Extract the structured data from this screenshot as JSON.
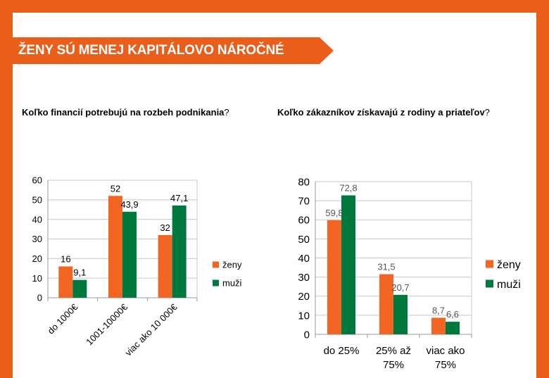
{
  "header": {
    "title": "ŽENY SÚ MENEJ KAPITÁLOVO NÁROČNÉ"
  },
  "colors": {
    "orange": "#E95E1B",
    "zeny": "#F26522",
    "muzi": "#00793F"
  },
  "questions": {
    "q1_bold": "Koľko financií potrebujú na rozbeh podnikania",
    "q1_end": "?",
    "q2_bold": "Koľko zákazníkov získavajú z rodiny a priateľov",
    "q2_end": "?"
  },
  "chart_data": [
    {
      "type": "bar",
      "categories": [
        "do 1000€",
        "1001-10000€",
        "viac ako 10 000€"
      ],
      "series": [
        {
          "name": "ženy",
          "values": [
            16,
            52,
            32
          ],
          "labels": [
            "16",
            "52",
            "32"
          ]
        },
        {
          "name": "muži",
          "values": [
            9.1,
            43.9,
            47.1
          ],
          "labels": [
            "9,1",
            "43,9",
            "47,1"
          ]
        }
      ],
      "ylim": [
        0,
        60
      ],
      "yticks": [
        0,
        10,
        20,
        30,
        40,
        50,
        60
      ],
      "grid": true,
      "legend": "right",
      "xlabel_rotation": "diagonal"
    },
    {
      "type": "bar",
      "categories": [
        [
          "do 25%"
        ],
        [
          "25% až",
          "75%"
        ],
        [
          "viac ako",
          "75%"
        ]
      ],
      "series": [
        {
          "name": "ženy",
          "values": [
            59.8,
            31.5,
            8.7
          ],
          "labels": [
            "59,8",
            "31,5",
            "8,7"
          ]
        },
        {
          "name": "muži",
          "values": [
            72.8,
            20.7,
            6.6
          ],
          "labels": [
            "72,8",
            "20,7",
            "6,6"
          ]
        }
      ],
      "ylim": [
        0,
        80
      ],
      "yticks": [
        0,
        10,
        20,
        30,
        40,
        50,
        60,
        70,
        80
      ],
      "grid": true,
      "legend": "right"
    }
  ]
}
